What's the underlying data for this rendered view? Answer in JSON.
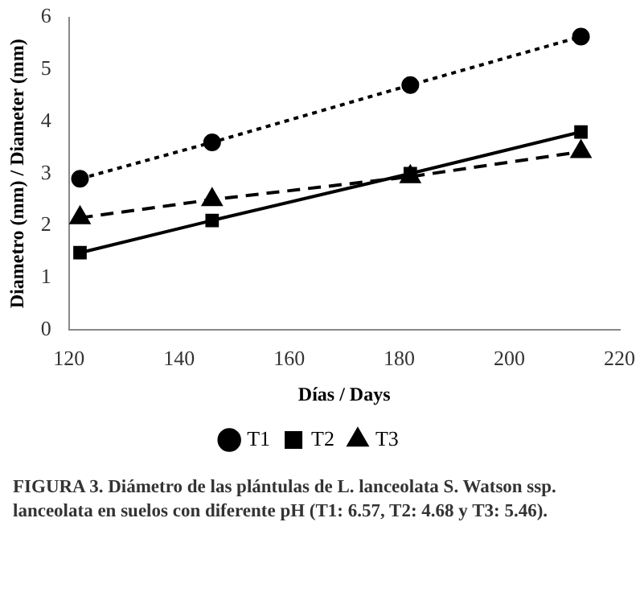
{
  "chart_data": {
    "type": "line",
    "xlabel": "Días / Days",
    "ylabel": "Diametro (mm) / Diameter (mm)",
    "x": [
      122,
      146,
      182,
      213
    ],
    "series": [
      {
        "name": "T1",
        "color": "#000000",
        "values": [
          2.9,
          3.6,
          4.7,
          5.63
        ],
        "marker": "circle",
        "line_style": "dotted"
      },
      {
        "name": "T2",
        "color": "#000000",
        "values": [
          1.48,
          2.1,
          3.0,
          3.8
        ],
        "marker": "square",
        "line_style": "solid"
      },
      {
        "name": "T3",
        "color": "#000000",
        "values": [
          2.15,
          2.5,
          2.94,
          3.42
        ],
        "marker": "triangle",
        "line_style": "dashed"
      }
    ],
    "xlim": [
      120,
      220
    ],
    "xticks": [
      120,
      140,
      160,
      180,
      200,
      220
    ],
    "ylim": [
      0,
      6
    ],
    "yticks": [
      0,
      1,
      2,
      3,
      4,
      5,
      6
    ],
    "grid": false,
    "legend": "bottom",
    "annotations": [
      "FIGURA 3. Diámetro de las plántulas de L. lanceolata S. Watson ssp. lanceolata en suelos con diferente pH (T1: 6.57, T2: 4.68 y T3: 5.46)."
    ]
  }
}
